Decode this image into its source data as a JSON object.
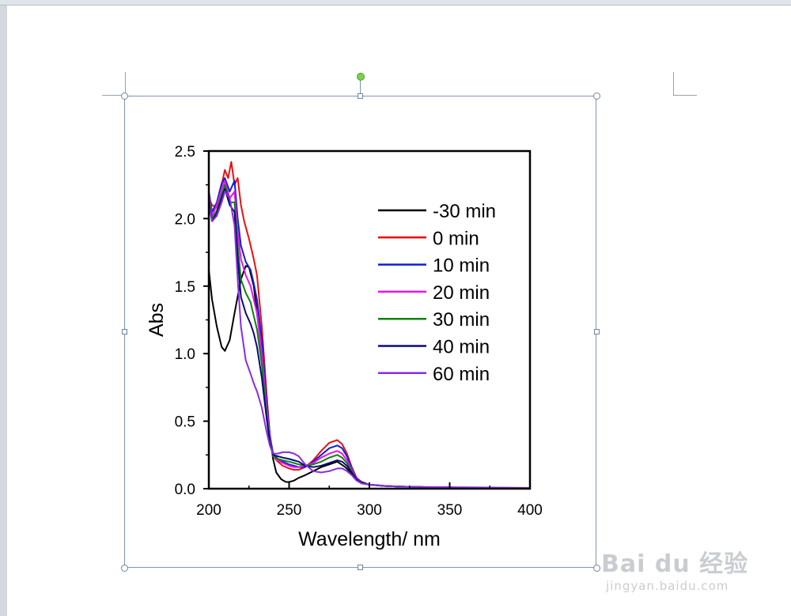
{
  "chart_data": {
    "type": "line",
    "xlabel": "Wavelength/ nm",
    "ylabel": "Abs",
    "xlim": [
      200,
      400
    ],
    "ylim": [
      0,
      2.5
    ],
    "xticks": [
      "200",
      "250",
      "300",
      "350",
      "400"
    ],
    "yticks": [
      "0.0",
      "0.5",
      "1.0",
      "1.5",
      "2.0",
      "2.5"
    ],
    "legend_position": "upper-right",
    "series": [
      {
        "name": "-30 min",
        "color": "#000000",
        "x": [
          200,
          202,
          205,
          208,
          210,
          213,
          216,
          220,
          223,
          225,
          228,
          230,
          233,
          236,
          238,
          240,
          242,
          245,
          248,
          250,
          253,
          256,
          260,
          265,
          270,
          275,
          280,
          285,
          290,
          295,
          300,
          310,
          320,
          340,
          360,
          380,
          400
        ],
        "y": [
          1.62,
          1.4,
          1.2,
          1.05,
          1.02,
          1.1,
          1.3,
          1.55,
          1.65,
          1.64,
          1.5,
          1.3,
          1.0,
          0.65,
          0.4,
          0.22,
          0.12,
          0.07,
          0.05,
          0.05,
          0.06,
          0.08,
          0.1,
          0.13,
          0.16,
          0.18,
          0.2,
          0.16,
          0.1,
          0.05,
          0.03,
          0.02,
          0.015,
          0.01,
          0.008,
          0.006,
          0.005
        ]
      },
      {
        "name": "0 min",
        "color": "#e81010",
        "x": [
          200,
          202,
          205,
          208,
          210,
          212,
          214,
          216,
          218,
          220,
          222,
          225,
          228,
          230,
          233,
          236,
          238,
          240,
          243,
          246,
          250,
          253,
          256,
          260,
          265,
          270,
          275,
          280,
          283,
          286,
          289,
          292,
          295,
          300,
          310,
          320,
          340,
          360,
          380,
          400
        ],
        "y": [
          2.15,
          2.1,
          2.08,
          2.25,
          2.36,
          2.3,
          2.42,
          2.25,
          2.3,
          2.1,
          1.98,
          1.85,
          1.7,
          1.58,
          1.2,
          0.7,
          0.4,
          0.24,
          0.2,
          0.17,
          0.15,
          0.14,
          0.14,
          0.16,
          0.21,
          0.28,
          0.34,
          0.36,
          0.33,
          0.26,
          0.16,
          0.08,
          0.04,
          0.03,
          0.02,
          0.015,
          0.01,
          0.008,
          0.006,
          0.005
        ]
      },
      {
        "name": "10 min",
        "color": "#1020d0",
        "x": [
          200,
          202,
          205,
          208,
          210,
          213,
          216,
          218,
          220,
          223,
          226,
          228,
          230,
          233,
          236,
          238,
          240,
          243,
          246,
          250,
          253,
          256,
          260,
          265,
          270,
          275,
          280,
          283,
          286,
          289,
          292,
          295,
          300,
          310,
          320,
          340,
          360,
          380,
          400
        ],
        "y": [
          2.2,
          2.05,
          2.12,
          2.26,
          2.3,
          2.2,
          2.28,
          2.0,
          1.8,
          1.68,
          1.62,
          1.52,
          1.4,
          1.1,
          0.65,
          0.4,
          0.26,
          0.22,
          0.2,
          0.18,
          0.17,
          0.16,
          0.16,
          0.2,
          0.25,
          0.3,
          0.32,
          0.3,
          0.24,
          0.15,
          0.08,
          0.04,
          0.03,
          0.02,
          0.015,
          0.01,
          0.008,
          0.006,
          0.005
        ]
      },
      {
        "name": "20 min",
        "color": "#ee10ee",
        "x": [
          200,
          202,
          205,
          208,
          210,
          213,
          216,
          218,
          220,
          223,
          226,
          228,
          230,
          233,
          236,
          238,
          240,
          243,
          246,
          250,
          253,
          256,
          260,
          265,
          270,
          275,
          280,
          283,
          286,
          289,
          292,
          295,
          300,
          310,
          320,
          340,
          360,
          380,
          400
        ],
        "y": [
          2.18,
          2.02,
          2.1,
          2.22,
          2.28,
          2.15,
          2.2,
          1.9,
          1.7,
          1.58,
          1.5,
          1.4,
          1.3,
          1.0,
          0.6,
          0.38,
          0.24,
          0.21,
          0.19,
          0.17,
          0.16,
          0.16,
          0.17,
          0.19,
          0.23,
          0.26,
          0.28,
          0.26,
          0.21,
          0.14,
          0.08,
          0.04,
          0.03,
          0.02,
          0.015,
          0.01,
          0.008,
          0.006,
          0.005
        ]
      },
      {
        "name": "30 min",
        "color": "#108010",
        "x": [
          200,
          202,
          205,
          208,
          210,
          213,
          216,
          218,
          220,
          223,
          226,
          228,
          230,
          233,
          236,
          238,
          240,
          243,
          246,
          250,
          253,
          256,
          260,
          265,
          270,
          275,
          280,
          283,
          286,
          289,
          292,
          295,
          300,
          310,
          320,
          340,
          360,
          380,
          400
        ],
        "y": [
          2.15,
          2.0,
          2.06,
          2.18,
          2.25,
          2.12,
          2.12,
          1.8,
          1.55,
          1.45,
          1.38,
          1.28,
          1.18,
          0.92,
          0.55,
          0.36,
          0.24,
          0.22,
          0.21,
          0.2,
          0.19,
          0.18,
          0.17,
          0.18,
          0.2,
          0.23,
          0.25,
          0.23,
          0.19,
          0.13,
          0.07,
          0.04,
          0.03,
          0.02,
          0.015,
          0.01,
          0.008,
          0.006,
          0.005
        ]
      },
      {
        "name": "40 min",
        "color": "#0a0a78",
        "x": [
          200,
          202,
          205,
          208,
          210,
          213,
          216,
          218,
          220,
          223,
          226,
          228,
          230,
          233,
          236,
          238,
          240,
          243,
          246,
          250,
          253,
          256,
          260,
          265,
          270,
          275,
          280,
          283,
          286,
          289,
          292,
          295,
          300,
          310,
          320,
          340,
          360,
          380,
          400
        ],
        "y": [
          2.12,
          1.98,
          2.04,
          2.15,
          2.22,
          2.1,
          2.05,
          1.7,
          1.42,
          1.3,
          1.22,
          1.15,
          1.05,
          0.82,
          0.52,
          0.34,
          0.25,
          0.24,
          0.23,
          0.22,
          0.21,
          0.2,
          0.17,
          0.16,
          0.17,
          0.19,
          0.21,
          0.2,
          0.17,
          0.12,
          0.07,
          0.04,
          0.03,
          0.02,
          0.015,
          0.01,
          0.008,
          0.006,
          0.005
        ]
      },
      {
        "name": "60 min",
        "color": "#8a2be2",
        "x": [
          200,
          202,
          205,
          208,
          210,
          213,
          216,
          218,
          220,
          223,
          226,
          228,
          230,
          233,
          236,
          238,
          240,
          243,
          246,
          250,
          253,
          256,
          260,
          265,
          270,
          275,
          280,
          283,
          286,
          289,
          292,
          295,
          300,
          310,
          320,
          340,
          360,
          380,
          400
        ],
        "y": [
          2.1,
          1.98,
          2.02,
          2.12,
          2.2,
          2.15,
          1.95,
          1.55,
          1.2,
          0.95,
          0.85,
          0.78,
          0.72,
          0.6,
          0.42,
          0.32,
          0.26,
          0.26,
          0.27,
          0.27,
          0.26,
          0.24,
          0.18,
          0.13,
          0.12,
          0.13,
          0.15,
          0.15,
          0.13,
          0.1,
          0.06,
          0.04,
          0.03,
          0.02,
          0.015,
          0.012,
          0.01,
          0.008,
          0.006
        ]
      }
    ]
  },
  "watermark": {
    "brand": "Bai du 经验",
    "url": "jingyan.baidu.com"
  }
}
